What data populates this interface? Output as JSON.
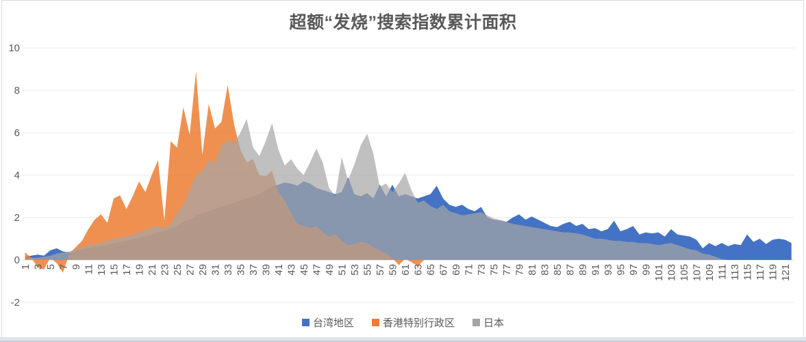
{
  "chart_data": {
    "type": "area",
    "title": "超额“发烧”搜索指数累计面积",
    "xlabel": "",
    "ylabel": "",
    "ylim": [
      -2,
      10
    ],
    "y_ticks": [
      10,
      8,
      6,
      4,
      2,
      0,
      -2
    ],
    "grid": "horizontal",
    "legend_position": "bottom",
    "n_points": 122,
    "x_tick_labels": [
      "1",
      "3",
      "5",
      "7",
      "9",
      "11",
      "13",
      "15",
      "17",
      "19",
      "21",
      "23",
      "25",
      "27",
      "29",
      "31",
      "33",
      "35",
      "37",
      "39",
      "41",
      "43",
      "45",
      "47",
      "49",
      "51",
      "53",
      "55",
      "57",
      "59",
      "61",
      "63",
      "65",
      "67",
      "69",
      "71",
      "73",
      "75",
      "77",
      "79",
      "81",
      "83",
      "85",
      "87",
      "89",
      "91",
      "93",
      "95",
      "97",
      "99",
      "101",
      "103",
      "105",
      "107",
      "109",
      "111",
      "113",
      "115",
      "117",
      "119",
      "121"
    ],
    "colors": {
      "text": "#595959",
      "gridline": "#e9e9e9",
      "zero_line": "#dadada",
      "frame_border": "#d9d9d9"
    },
    "series": [
      {
        "name": "台湾地区",
        "key": "taiwan",
        "color": "#4472C4",
        "opacity": 1,
        "values": [
          0.15,
          0.2,
          0.25,
          0.2,
          0.45,
          0.55,
          0.4,
          0.35,
          0.4,
          0.5,
          0.55,
          0.6,
          0.65,
          0.7,
          0.8,
          0.85,
          0.9,
          1.0,
          1.05,
          1.1,
          1.2,
          1.3,
          1.35,
          1.5,
          1.6,
          1.8,
          1.9,
          2.1,
          2.2,
          2.3,
          2.4,
          2.5,
          2.6,
          2.7,
          2.8,
          2.9,
          3.0,
          3.1,
          3.3,
          3.45,
          3.55,
          3.65,
          3.6,
          3.5,
          3.7,
          3.6,
          3.4,
          3.3,
          3.2,
          3.1,
          3.2,
          3.9,
          3.1,
          3.0,
          3.15,
          2.9,
          3.55,
          3.0,
          3.55,
          3.0,
          3.1,
          3.0,
          2.9,
          3.0,
          3.1,
          3.5,
          2.9,
          2.6,
          2.5,
          2.6,
          2.4,
          2.3,
          2.5,
          2.0,
          1.9,
          1.85,
          1.8,
          2.0,
          2.15,
          1.9,
          2.05,
          1.9,
          1.75,
          1.6,
          1.55,
          1.7,
          1.8,
          1.6,
          1.7,
          1.45,
          1.5,
          1.35,
          1.45,
          1.85,
          1.35,
          1.45,
          1.6,
          1.2,
          1.3,
          1.25,
          1.3,
          1.1,
          1.45,
          1.2,
          1.15,
          1.1,
          0.95,
          0.55,
          0.8,
          0.65,
          0.8,
          0.65,
          0.75,
          0.7,
          1.2,
          0.85,
          1.0,
          0.75,
          0.95,
          1.0,
          0.95,
          0.8
        ]
      },
      {
        "name": "香港特别行政区",
        "key": "hongkong",
        "color": "#ED7D31",
        "opacity": 0.85,
        "values": [
          0.35,
          0.1,
          -0.35,
          -0.45,
          0.1,
          -0.15,
          -0.6,
          0.3,
          0.6,
          0.9,
          1.45,
          1.9,
          2.15,
          1.75,
          2.9,
          3.05,
          2.4,
          3.0,
          3.7,
          3.2,
          4.0,
          4.7,
          1.85,
          5.6,
          5.3,
          7.2,
          5.9,
          8.9,
          4.95,
          7.35,
          6.2,
          6.5,
          8.25,
          6.4,
          5.2,
          4.6,
          4.75,
          4.0,
          3.95,
          4.2,
          3.2,
          2.8,
          2.2,
          1.7,
          1.6,
          1.5,
          1.6,
          1.3,
          1.1,
          1.2,
          0.9,
          0.7,
          0.75,
          0.85,
          0.8,
          0.6,
          0.45,
          0.3,
          0.1,
          -0.25,
          0.05,
          -0.1,
          -0.3,
          0,
          0,
          0,
          0,
          0,
          0,
          0,
          0,
          0,
          0,
          0,
          0,
          0,
          0,
          0,
          0,
          0,
          0,
          0,
          0,
          0,
          0,
          0,
          0,
          0,
          0,
          0,
          0,
          0,
          0,
          0,
          0,
          0,
          0,
          0,
          0,
          0,
          0,
          0,
          0,
          0,
          0,
          0,
          0,
          0,
          0,
          0,
          0,
          0,
          0,
          0,
          0,
          0,
          0,
          0,
          0,
          0,
          0,
          0
        ]
      },
      {
        "name": "日本",
        "key": "japan",
        "color": "#A5A5A5",
        "opacity": 0.7,
        "values": [
          0.05,
          0.1,
          0.1,
          0.15,
          0.2,
          0.3,
          0.35,
          0.4,
          0.5,
          0.6,
          0.7,
          0.75,
          0.8,
          0.9,
          1.0,
          1.05,
          1.1,
          1.2,
          1.3,
          1.4,
          1.55,
          1.6,
          1.5,
          1.7,
          2.2,
          2.6,
          3.3,
          4.0,
          4.2,
          4.7,
          4.6,
          5.4,
          5.65,
          5.5,
          6.0,
          6.65,
          5.3,
          4.9,
          5.6,
          6.45,
          5.2,
          4.45,
          4.75,
          4.3,
          4.0,
          4.6,
          5.25,
          4.6,
          3.4,
          3.0,
          4.85,
          3.75,
          4.5,
          5.4,
          5.95,
          5.0,
          3.45,
          3.6,
          3.2,
          3.6,
          4.1,
          3.3,
          2.7,
          2.8,
          2.55,
          2.4,
          2.6,
          2.3,
          2.2,
          2.1,
          2.15,
          2.2,
          2.25,
          2.1,
          1.95,
          1.9,
          1.8,
          1.7,
          1.65,
          1.6,
          1.55,
          1.5,
          1.45,
          1.4,
          1.35,
          1.3,
          1.3,
          1.25,
          1.2,
          1.1,
          1.0,
          1.0,
          0.95,
          0.9,
          0.9,
          0.85,
          0.85,
          0.8,
          0.8,
          0.75,
          0.7,
          0.75,
          0.8,
          0.7,
          0.6,
          0.5,
          0.45,
          0.3,
          0.25,
          0.15,
          0.05,
          0,
          0,
          0,
          0,
          0,
          0,
          0,
          0,
          0,
          0,
          0
        ]
      }
    ]
  }
}
